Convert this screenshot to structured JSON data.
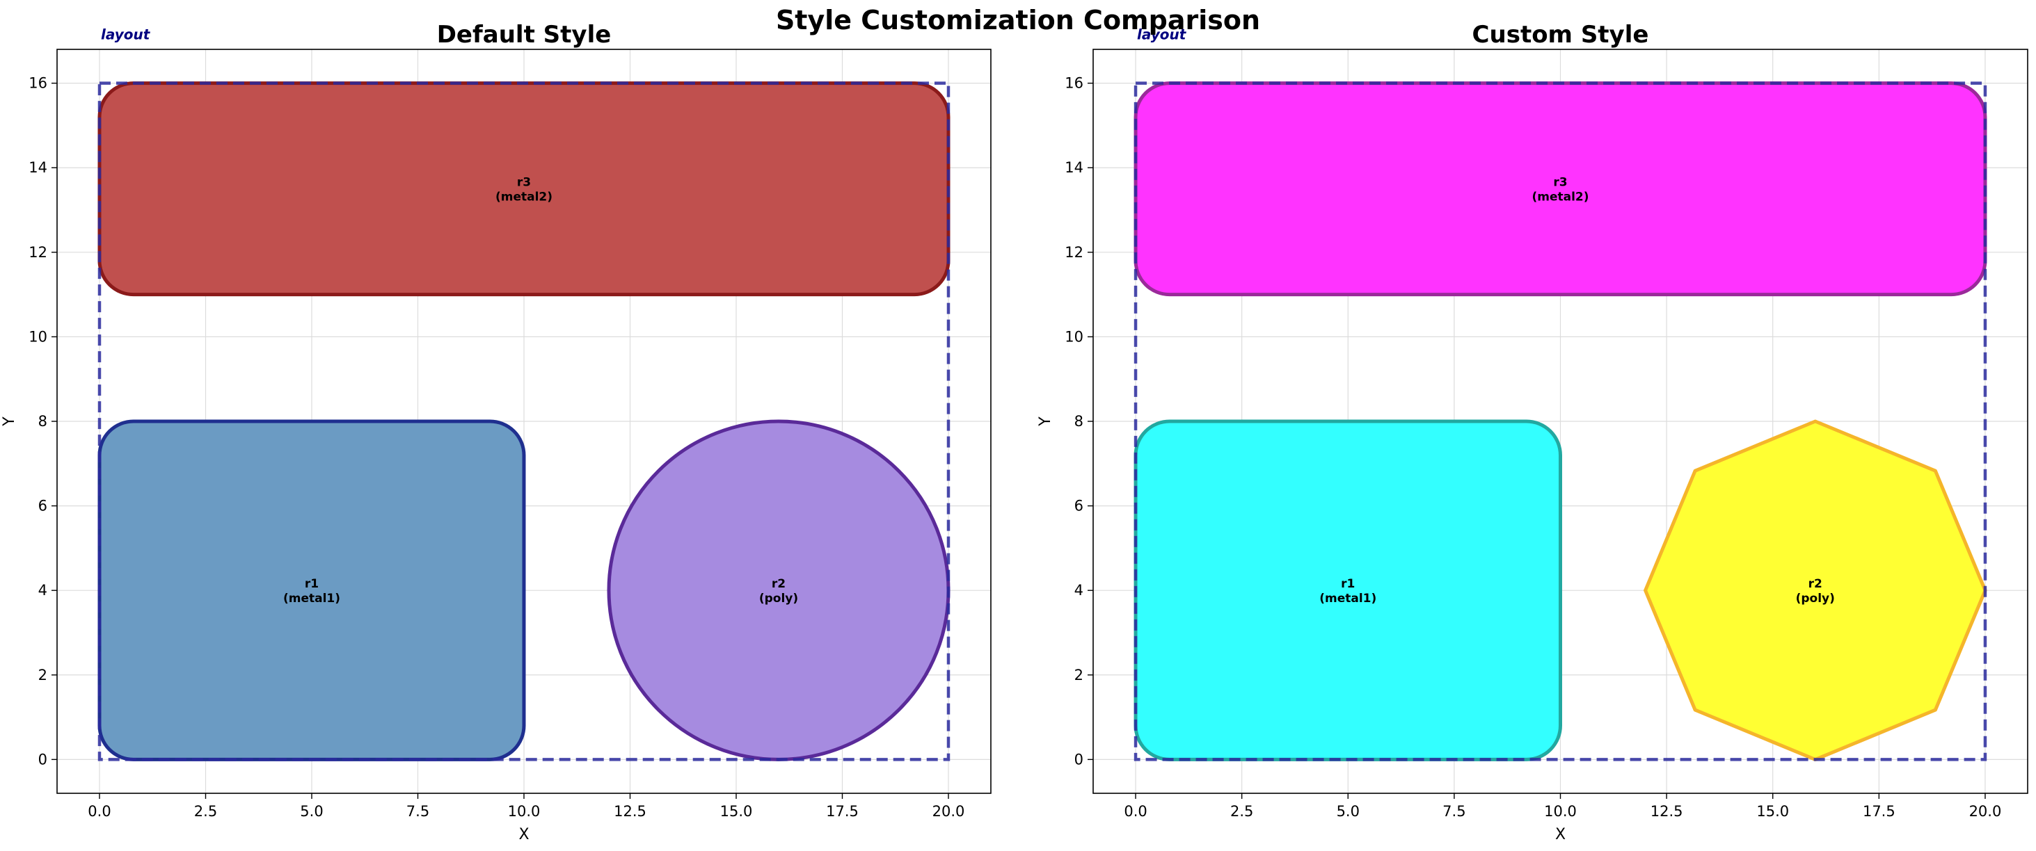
{
  "figure_title": "Style Customization Comparison",
  "chart_data": [
    {
      "type": "diagram",
      "title": "Default Style",
      "xlabel": "X",
      "ylabel": "Y",
      "xlim": [
        -1.0,
        21.0
      ],
      "ylim": [
        -0.8,
        16.8
      ],
      "xticks": [
        0.0,
        2.5,
        5.0,
        7.5,
        10.0,
        12.5,
        15.0,
        17.5,
        20.0
      ],
      "xtick_labels": [
        "0.0",
        "2.5",
        "5.0",
        "7.5",
        "10.0",
        "12.5",
        "15.0",
        "17.5",
        "20.0"
      ],
      "yticks": [
        0,
        2,
        4,
        6,
        8,
        10,
        12,
        14,
        16
      ],
      "ytick_labels": [
        "0",
        "2",
        "4",
        "6",
        "8",
        "10",
        "12",
        "14",
        "16"
      ],
      "grid": true,
      "layout_label": "layout",
      "layout_boundary": {
        "x0": 0,
        "y0": 0,
        "x1": 20,
        "y1": 16,
        "color": "#2a2a9e"
      },
      "shapes": [
        {
          "id": "r1",
          "layer": "metal1",
          "label": "r1\n(metal1)",
          "kind": "rounded-rect",
          "x0": 0,
          "y0": 0,
          "x1": 10,
          "y1": 8,
          "fill": "#6b9bc3",
          "stroke": "#1f2f8f"
        },
        {
          "id": "r2",
          "layer": "poly",
          "label": "r2\n(poly)",
          "kind": "circle",
          "cx": 16,
          "cy": 4,
          "r": 4,
          "fill": "#a68be0",
          "stroke": "#5a2a99"
        },
        {
          "id": "r3",
          "layer": "metal2",
          "label": "r3\n(metal2)",
          "kind": "rounded-rect",
          "x0": 0,
          "y0": 11,
          "x1": 20,
          "y1": 16,
          "fill": "#c0504e",
          "stroke": "#8b1a1a"
        }
      ]
    },
    {
      "type": "diagram",
      "title": "Custom Style",
      "xlabel": "X",
      "ylabel": "Y",
      "xlim": [
        -1.0,
        21.0
      ],
      "ylim": [
        -0.8,
        16.8
      ],
      "xticks": [
        0.0,
        2.5,
        5.0,
        7.5,
        10.0,
        12.5,
        15.0,
        17.5,
        20.0
      ],
      "xtick_labels": [
        "0.0",
        "2.5",
        "5.0",
        "7.5",
        "10.0",
        "12.5",
        "15.0",
        "17.5",
        "20.0"
      ],
      "yticks": [
        0,
        2,
        4,
        6,
        8,
        10,
        12,
        14,
        16
      ],
      "ytick_labels": [
        "0",
        "2",
        "4",
        "6",
        "8",
        "10",
        "12",
        "14",
        "16"
      ],
      "grid": true,
      "layout_label": "layout",
      "layout_boundary": {
        "x0": 0,
        "y0": 0,
        "x1": 20,
        "y1": 16,
        "color": "#2a2a9e"
      },
      "shapes": [
        {
          "id": "r1",
          "layer": "metal1",
          "label": "r1\n(metal1)",
          "kind": "rounded-rect",
          "x0": 0,
          "y0": 0,
          "x1": 10,
          "y1": 8,
          "fill": "#33ffff",
          "stroke": "#22a8a0"
        },
        {
          "id": "r2",
          "layer": "poly",
          "label": "r2\n(poly)",
          "kind": "octagon",
          "cx": 16,
          "cy": 4,
          "r": 4,
          "fill": "#ffff33",
          "stroke": "#f5b52a"
        },
        {
          "id": "r3",
          "layer": "metal2",
          "label": "r3\n(metal2)",
          "kind": "rounded-rect",
          "x0": 0,
          "y0": 11,
          "x1": 20,
          "y1": 16,
          "fill": "#ff33ff",
          "stroke": "#9a2a9a"
        }
      ]
    }
  ]
}
